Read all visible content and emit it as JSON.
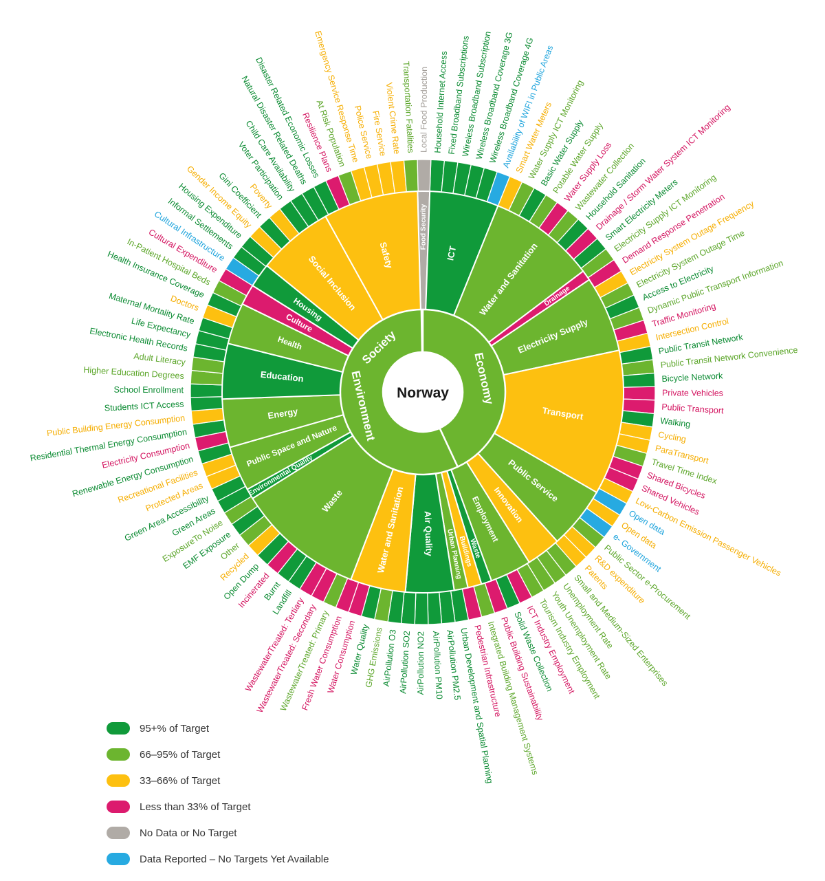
{
  "colors": {
    "dark_green": "#109a3a",
    "light_green": "#6cb52f",
    "yellow": "#fdc010",
    "red": "#dc1b6e",
    "grey": "#b0aba6",
    "blue": "#27aae1"
  },
  "chart_data": {
    "type": "sunburst",
    "center": "Norway",
    "dimensions": [
      {
        "name": "Society",
        "color": "light_green",
        "start": -1,
        "end": -88
      },
      {
        "name": "Economy",
        "color": "light_green",
        "start": 0,
        "end": 155
      },
      {
        "name": "Environment",
        "color": "light_green",
        "start": 155,
        "end": 359
      }
    ],
    "categories": [
      {
        "name": "Food Security",
        "color": "grey",
        "start": -1.5,
        "end": 2
      },
      {
        "name": "ICT",
        "color": "dark_green",
        "start": 2,
        "end": 22
      },
      {
        "name": "Water and Sanitation",
        "color": "light_green",
        "start": 22,
        "end": 53
      },
      {
        "name": "Drainage",
        "color": "red",
        "start": 53,
        "end": 56
      },
      {
        "name": "Electricity Supply",
        "color": "light_green",
        "start": 56,
        "end": 78
      },
      {
        "name": "Transport",
        "color": "yellow",
        "start": 78,
        "end": 120
      },
      {
        "name": "Public Service",
        "color": "light_green",
        "start": 120,
        "end": 138
      },
      {
        "name": "Innovation",
        "color": "yellow",
        "start": 138,
        "end": 148
      },
      {
        "name": "Employment",
        "color": "light_green",
        "start": 148,
        "end": 160
      },
      {
        "name": "Waste",
        "color": "dark_green",
        "start": 160,
        "end": 163
      },
      {
        "name": "Buildings",
        "color": "yellow",
        "start": 163,
        "end": 167
      },
      {
        "name": "Urban Planning",
        "color": "light_green",
        "start": 167,
        "end": 171
      },
      {
        "name": "Air Quality",
        "color": "dark_green",
        "start": 171,
        "end": 185
      },
      {
        "name": "Water and Sanitation",
        "color": "yellow",
        "start": 185,
        "end": 201
      },
      {
        "name": "Waste",
        "color": "light_green",
        "start": 201,
        "end": 238
      },
      {
        "name": "Environmental Quality",
        "color": "dark_green",
        "start": 238,
        "end": 241
      },
      {
        "name": "Public Space and Nature",
        "color": "light_green",
        "start": 241,
        "end": 254
      },
      {
        "name": "Energy",
        "color": "light_green",
        "start": 254,
        "end": 268
      },
      {
        "name": "Education",
        "color": "dark_green",
        "start": 268,
        "end": 284
      },
      {
        "name": "Health",
        "color": "light_green",
        "start": 284,
        "end": 296
      },
      {
        "name": "Culture",
        "color": "red",
        "start": 296,
        "end": 302
      },
      {
        "name": "Housing",
        "color": "dark_green",
        "start": 302,
        "end": 309
      },
      {
        "name": "Social Inclusion",
        "color": "yellow",
        "start": 309,
        "end": 331
      },
      {
        "name": "Safety",
        "color": "yellow",
        "start": 331,
        "end": 358.5
      }
    ],
    "indicators": [
      {
        "label": "Household Internet Access",
        "color": "dark_green"
      },
      {
        "label": "Fixed Broadband Subscriptions",
        "color": "dark_green"
      },
      {
        "label": "Wireless Broadband Subscription",
        "color": "dark_green"
      },
      {
        "label": "Wireless Broadband Coverage 3G",
        "color": "dark_green"
      },
      {
        "label": "Wireless Broadband Coverage 4G",
        "color": "dark_green"
      },
      {
        "label": "Availability of WIFI in Public Areas",
        "color": "blue"
      },
      {
        "label": "Smart Water Meters",
        "color": "yellow"
      },
      {
        "label": "Water Supply ICT Monitoring",
        "color": "light_green"
      },
      {
        "label": "Basic Water Supply",
        "color": "dark_green"
      },
      {
        "label": "Potable Water Supply",
        "color": "light_green"
      },
      {
        "label": "Water Supply Loss",
        "color": "red"
      },
      {
        "label": "Wastewater Collection",
        "color": "light_green"
      },
      {
        "label": "Household Sanitation",
        "color": "dark_green"
      },
      {
        "label": "Drainage / Storm Water System ICT Monitoring",
        "color": "red"
      },
      {
        "label": "Smart Electricity Meters",
        "color": "dark_green"
      },
      {
        "label": "Electricity Supply ICT Monitoring",
        "color": "light_green"
      },
      {
        "label": "Demand Response Penetration",
        "color": "red"
      },
      {
        "label": "Electricity System Outage Frequency",
        "color": "yellow"
      },
      {
        "label": "Electricity System Outage Time",
        "color": "light_green"
      },
      {
        "label": "Access to Electricity",
        "color": "dark_green"
      },
      {
        "label": "Dynamic Public Transport Information",
        "color": "light_green"
      },
      {
        "label": "Traffic Monitoring",
        "color": "red"
      },
      {
        "label": "Intersection Control",
        "color": "yellow"
      },
      {
        "label": "Public Transit Network",
        "color": "dark_green"
      },
      {
        "label": "Public Transit Network Convenience",
        "color": "light_green"
      },
      {
        "label": "Bicycle Network",
        "color": "dark_green"
      },
      {
        "label": "Private Vehicles",
        "color": "red"
      },
      {
        "label": "Public Transport",
        "color": "red"
      },
      {
        "label": "Walking",
        "color": "dark_green"
      },
      {
        "label": "Cycling",
        "color": "yellow"
      },
      {
        "label": "ParaTransport",
        "color": "yellow"
      },
      {
        "label": "Travel Time Index",
        "color": "light_green"
      },
      {
        "label": "Shared Bicycles",
        "color": "red"
      },
      {
        "label": "Shared Vehicles",
        "color": "red"
      },
      {
        "label": "Low-Carbon Emission Passenger Vehicles",
        "color": "yellow"
      },
      {
        "label": "Open data",
        "color": "blue"
      },
      {
        "label": "Open data",
        "color": "yellow"
      },
      {
        "label": "e- Government",
        "color": "blue"
      },
      {
        "label": "Public Sector e-Procurement",
        "color": "light_green"
      },
      {
        "label": "R&D expenditure",
        "color": "yellow"
      },
      {
        "label": "Patents",
        "color": "yellow"
      },
      {
        "label": "Small and Medium-Sized Enterprises",
        "color": "light_green"
      },
      {
        "label": "Unemployment Rate",
        "color": "light_green"
      },
      {
        "label": "Youth Unemployment Rate",
        "color": "light_green"
      },
      {
        "label": "Tourism Industry Employment",
        "color": "light_green"
      },
      {
        "label": "ICT Industry Employment",
        "color": "red"
      },
      {
        "label": "Solid Waste Collection",
        "color": "dark_green"
      },
      {
        "label": "Public Building Sustainability",
        "color": "red"
      },
      {
        "label": "Integrated Building Management Systems",
        "color": "light_green"
      },
      {
        "label": "Pedestrian Infrastructure",
        "color": "red"
      },
      {
        "label": "Urban Development and Spatial Planning",
        "color": "dark_green"
      },
      {
        "label": "AirPollution PM2.5",
        "color": "dark_green"
      },
      {
        "label": "AirPollution PM10",
        "color": "dark_green"
      },
      {
        "label": "AirPollution NO2",
        "color": "dark_green"
      },
      {
        "label": "AirPollution SO2",
        "color": "dark_green"
      },
      {
        "label": "AirPollution O3",
        "color": "dark_green"
      },
      {
        "label": "GHG Emissions",
        "color": "light_green"
      },
      {
        "label": "Water Quality",
        "color": "dark_green"
      },
      {
        "label": "Water Consumption",
        "color": "red"
      },
      {
        "label": "Fresh Water Consumption",
        "color": "red"
      },
      {
        "label": "WastewaterTreated: Primary",
        "color": "light_green"
      },
      {
        "label": "WastewaterTreated: Secondary",
        "color": "red"
      },
      {
        "label": "WastewaterTreated: Tertiary",
        "color": "red"
      },
      {
        "label": "Landfill",
        "color": "dark_green"
      },
      {
        "label": "Burnt",
        "color": "dark_green"
      },
      {
        "label": "Incinerated",
        "color": "red"
      },
      {
        "label": "Open Dump",
        "color": "dark_green"
      },
      {
        "label": "Recycled",
        "color": "yellow"
      },
      {
        "label": "Other",
        "color": "light_green"
      },
      {
        "label": "EMF Exposure",
        "color": "dark_green"
      },
      {
        "label": "ExposureTo Noise",
        "color": "light_green"
      },
      {
        "label": "Green Areas",
        "color": "dark_green"
      },
      {
        "label": "Green Area Accessibility",
        "color": "dark_green"
      },
      {
        "label": "Protected Areas",
        "color": "yellow"
      },
      {
        "label": "Recreational Facilities",
        "color": "yellow"
      },
      {
        "label": "Renewable Energy Consumption",
        "color": "dark_green"
      },
      {
        "label": "Electricity Consumption",
        "color": "red"
      },
      {
        "label": "Residential Thermal Energy Consumption",
        "color": "dark_green"
      },
      {
        "label": "Public Building Energy Consumption",
        "color": "yellow"
      },
      {
        "label": "Students ICT Access",
        "color": "dark_green"
      },
      {
        "label": "School Enrollment",
        "color": "dark_green"
      },
      {
        "label": "Higher Education Degrees",
        "color": "light_green"
      },
      {
        "label": "Adult Literacy",
        "color": "light_green"
      },
      {
        "label": "Electronic Health Records",
        "color": "dark_green"
      },
      {
        "label": "Life Expectancy",
        "color": "dark_green"
      },
      {
        "label": "Maternal Mortality Rate",
        "color": "dark_green"
      },
      {
        "label": "Doctors",
        "color": "yellow"
      },
      {
        "label": "Health Insurance Coverage",
        "color": "dark_green"
      },
      {
        "label": "In-Patient Hospital Beds",
        "color": "light_green"
      },
      {
        "label": "Cultural Expenditure",
        "color": "red"
      },
      {
        "label": "Cultural Infrastructure",
        "color": "blue"
      },
      {
        "label": "Informal Settlements",
        "color": "dark_green"
      },
      {
        "label": "Housing Expenditure",
        "color": "dark_green"
      },
      {
        "label": "Gender Income Equity",
        "color": "yellow"
      },
      {
        "label": "Gini Coefficient",
        "color": "dark_green"
      },
      {
        "label": "Poverty",
        "color": "yellow"
      },
      {
        "label": "Voter Participation",
        "color": "dark_green"
      },
      {
        "label": "Child Care Availability",
        "color": "dark_green"
      },
      {
        "label": "Natural Disaster Related Deaths",
        "color": "dark_green"
      },
      {
        "label": "Disaster Related Economic Losses",
        "color": "dark_green"
      },
      {
        "label": "Resilience Plans",
        "color": "red"
      },
      {
        "label": "At Risk Population",
        "color": "light_green"
      },
      {
        "label": "Emergency Service Response Time",
        "color": "yellow"
      },
      {
        "label": "Police Service",
        "color": "yellow"
      },
      {
        "label": "Fire Service",
        "color": "yellow"
      },
      {
        "label": "Violent Crime Rate",
        "color": "yellow"
      },
      {
        "label": "Transportation Fatalities",
        "color": "light_green"
      },
      {
        "label": "Local Food Production",
        "color": "grey"
      }
    ],
    "legend": {
      "placement": "bottom-left",
      "entries": [
        {
          "label": "95+% of Target",
          "color": "dark_green"
        },
        {
          "label": "66–95% of Target",
          "color": "light_green"
        },
        {
          "label": "33–66% of Target",
          "color": "yellow"
        },
        {
          "label": "Less than 33% of Target",
          "color": "red"
        },
        {
          "label": "No Data or No Target",
          "color": "grey"
        },
        {
          "label": "Data Reported – No Targets Yet Available",
          "color": "blue"
        }
      ]
    }
  }
}
